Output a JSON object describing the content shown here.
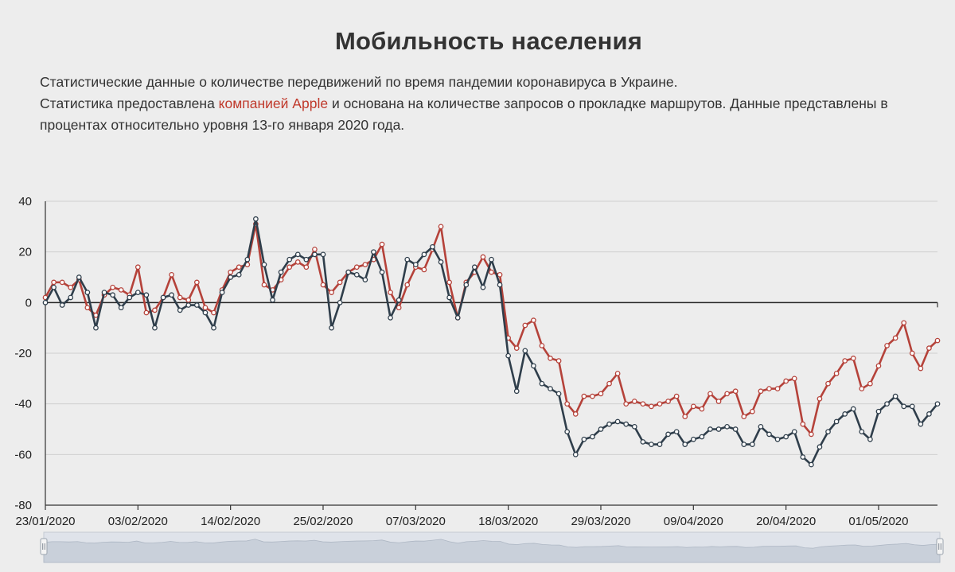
{
  "header": {
    "title": "Мобильность населения",
    "line1": "Статистические данные о количестве передвижений по время пандемии коронавируса в Украине.",
    "line2_before": "Статистика предоставлена ",
    "line2_link": "компанией Apple",
    "line2_after": " и основана на количестве запросов о прокладке маршрутов. Данные представлены в процентах относительно уровня 13-го января 2020 года."
  },
  "colors": {
    "series_red": "#b5423a",
    "series_dark": "#2f3e4b",
    "grid": "#cfcfcf",
    "axis": "#333333",
    "navigator_fill": "#c9d0da",
    "navigator_mask": "#dfe3ea"
  },
  "chart_data": {
    "type": "line",
    "title": "",
    "xlabel": "",
    "ylabel": "",
    "x_start": "23/01/2020",
    "x_ticks": [
      "23/01/2020",
      "03/02/2020",
      "14/02/2020",
      "25/02/2020",
      "07/03/2020",
      "18/03/2020",
      "29/03/2020",
      "09/04/2020",
      "20/04/2020",
      "01/05/2020"
    ],
    "y_ticks": [
      40,
      20,
      0,
      -20,
      -40,
      -60,
      -80
    ],
    "ylim": [
      -80,
      40
    ],
    "grid": true,
    "legend": "none",
    "navigator": true,
    "series": [
      {
        "color": "#b5423a",
        "values": [
          2,
          8,
          8,
          6,
          9,
          -2,
          -5,
          3,
          6,
          5,
          3,
          14,
          -4,
          -3,
          2,
          11,
          2,
          1,
          8,
          -2,
          -4,
          5,
          12,
          14,
          15,
          31,
          7,
          5,
          9,
          14,
          16,
          14,
          21,
          7,
          4,
          8,
          12,
          14,
          15,
          17,
          23,
          4,
          -2,
          7,
          14,
          13,
          21,
          30,
          8,
          -6,
          8,
          12,
          18,
          12,
          11,
          -14,
          -18,
          -9,
          -7,
          -17,
          -22,
          -23,
          -40,
          -44,
          -37,
          -37,
          -36,
          -32,
          -28,
          -40,
          -39,
          -40,
          -41,
          -40,
          -39,
          -37,
          -45,
          -41,
          -42,
          -36,
          -39,
          -36,
          -35,
          -45,
          -43,
          -35,
          -34,
          -34,
          -31,
          -30,
          -48,
          -52,
          -38,
          -32,
          -28,
          -23,
          -22,
          -34,
          -32,
          -25,
          -17,
          -14,
          -8,
          -20,
          -26,
          -18,
          -15
        ]
      },
      {
        "color": "#2f3e4b",
        "values": [
          0,
          6,
          -1,
          2,
          10,
          4,
          -10,
          4,
          3,
          -2,
          2,
          4,
          3,
          -10,
          2,
          3,
          -3,
          -1,
          -1,
          -4,
          -10,
          4,
          10,
          11,
          17,
          33,
          15,
          1,
          12,
          17,
          19,
          17,
          19,
          19,
          -10,
          0,
          12,
          11,
          9,
          20,
          12,
          -6,
          1,
          17,
          15,
          19,
          22,
          16,
          2,
          -6,
          7,
          14,
          6,
          17,
          7,
          -21,
          -35,
          -19,
          -25,
          -32,
          -34,
          -36,
          -51,
          -60,
          -54,
          -53,
          -50,
          -48,
          -47,
          -48,
          -49,
          -55,
          -56,
          -56,
          -52,
          -51,
          -56,
          -54,
          -53,
          -50,
          -50,
          -49,
          -50,
          -56,
          -56,
          -49,
          -52,
          -54,
          -53,
          -51,
          -61,
          -64,
          -57,
          -51,
          -47,
          -44,
          -42,
          -51,
          -54,
          -43,
          -40,
          -37,
          -41,
          -41,
          -48,
          -44,
          -40
        ]
      }
    ]
  }
}
